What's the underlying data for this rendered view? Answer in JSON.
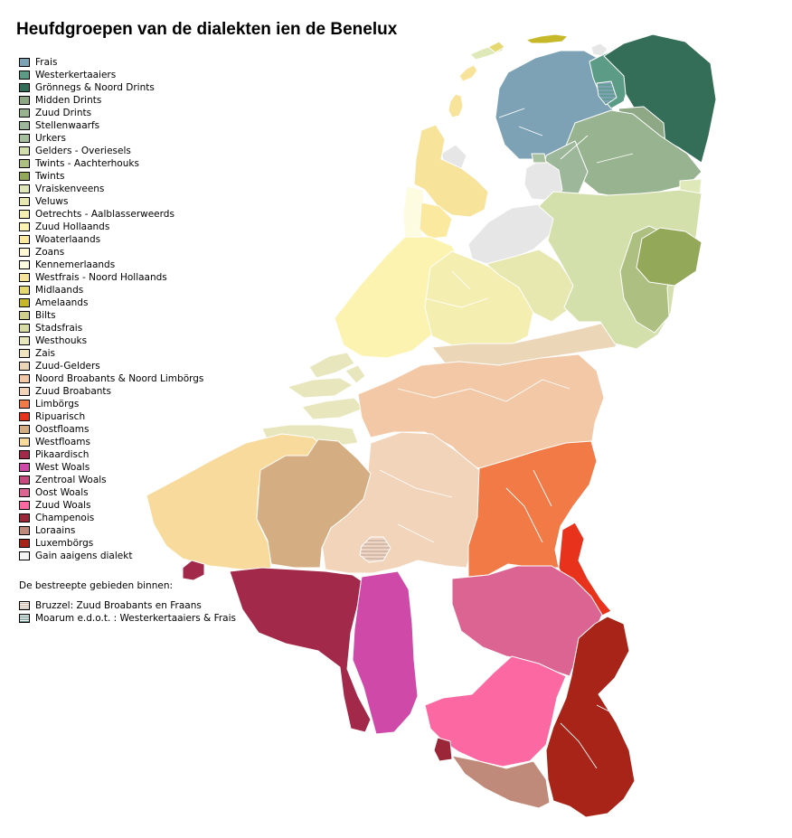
{
  "title": "Heufdgroepen van de dialekten ien de Benelux",
  "legend": [
    {
      "label": "Frais",
      "color": "#7ea2b5",
      "icon": "swatch"
    },
    {
      "label": "Westerkertaaiers",
      "color": "#5c9c86",
      "icon": "swatch"
    },
    {
      "label": "Grönnegs & Noord Drints",
      "color": "#356e58",
      "icon": "swatch"
    },
    {
      "label": "Midden Drints",
      "color": "#8ea886",
      "icon": "swatch"
    },
    {
      "label": "Zuud Drints",
      "color": "#97b38f",
      "icon": "swatch"
    },
    {
      "label": "Stellenwaarfs",
      "color": "#9db79a",
      "icon": "swatch"
    },
    {
      "label": "Urkers",
      "color": "#a7c0a0",
      "icon": "swatch"
    },
    {
      "label": "Gelders - Overiesels",
      "color": "#d4e0ac",
      "icon": "swatch"
    },
    {
      "label": "Twints - Aachterhouks",
      "color": "#adbf81",
      "icon": "swatch"
    },
    {
      "label": "Twints",
      "color": "#94a85a",
      "icon": "swatch"
    },
    {
      "label": "Vraiskenveens",
      "color": "#dfe8b8",
      "icon": "swatch"
    },
    {
      "label": "Veluws",
      "color": "#e6e8b0",
      "icon": "swatch"
    },
    {
      "label": "Oetrechts - Aalblasserweerds",
      "color": "#f4eeb0",
      "icon": "swatch"
    },
    {
      "label": "Zuud Hollaands",
      "color": "#fcf3b0",
      "icon": "swatch"
    },
    {
      "label": "Woaterlaands",
      "color": "#fbe9a0",
      "icon": "swatch"
    },
    {
      "label": "Zoans",
      "color": "#fff8d4",
      "icon": "swatch"
    },
    {
      "label": "Kennemerlaands",
      "color": "#fdfbe0",
      "icon": "swatch"
    },
    {
      "label": "Westfrais - Noord Hollaands",
      "color": "#f8e39a",
      "icon": "swatch"
    },
    {
      "label": "Midlaands",
      "color": "#e6d870",
      "icon": "swatch"
    },
    {
      "label": "Amelaands",
      "color": "#c6b829",
      "icon": "swatch"
    },
    {
      "label": "Bilts",
      "color": "#d0d08c",
      "icon": "swatch"
    },
    {
      "label": "Stadsfrais",
      "color": "#d6dca4",
      "icon": "swatch"
    },
    {
      "label": "Westhouks",
      "color": "#e8e6bc",
      "icon": "swatch"
    },
    {
      "label": "Zais",
      "color": "#efe4c0",
      "icon": "swatch"
    },
    {
      "label": "Zuud-Gelders",
      "color": "#ecd6b8",
      "icon": "swatch"
    },
    {
      "label": "Noord Broabants & Noord Limbörgs",
      "color": "#f2c8a6",
      "icon": "swatch"
    },
    {
      "label": "Zuud Broabants",
      "color": "#f1d4ba",
      "icon": "swatch"
    },
    {
      "label": "Limbörgs",
      "color": "#f27a46",
      "icon": "swatch"
    },
    {
      "label": "Ripuarisch",
      "color": "#e8321c",
      "icon": "swatch"
    },
    {
      "label": "Oostfloams",
      "color": "#d4ae82",
      "icon": "swatch"
    },
    {
      "label": "Westfloams",
      "color": "#f8da9c",
      "icon": "swatch"
    },
    {
      "label": "Pikaardisch",
      "color": "#a3294a",
      "icon": "swatch"
    },
    {
      "label": "West Woals",
      "color": "#cf4aa8",
      "icon": "swatch"
    },
    {
      "label": "Zentroal Woals",
      "color": "#c64a7e",
      "icon": "swatch"
    },
    {
      "label": "Oost Woals",
      "color": "#dc6492",
      "icon": "swatch"
    },
    {
      "label": "Zuud Woals",
      "color": "#fc68a2",
      "icon": "swatch"
    },
    {
      "label": "Champenois",
      "color": "#9a2638",
      "icon": "swatch"
    },
    {
      "label": "Loraains",
      "color": "#c08a7a",
      "icon": "swatch"
    },
    {
      "label": "Luxembörgs",
      "color": "#a82418",
      "icon": "swatch"
    },
    {
      "label": "Gain aaigens dialekt",
      "color": "#f4f4f4",
      "icon": "swatch"
    }
  ],
  "hatched_heading": "De bestreepte gebieden binnen:",
  "hatched_legend": [
    {
      "label": "Bruzzel: Zuud Broabants en Fraans",
      "color": "#c8b0a0",
      "icon": "hatched-swatch"
    },
    {
      "label": "Moarum e.d.o.t. : Westerkertaaiers & Frais",
      "color": "#6f9290",
      "icon": "hatched-swatch"
    }
  ],
  "colors": {
    "background": "#ffffff",
    "unmapped_area": "#e6e6e6",
    "region_border": "#ffffff"
  }
}
